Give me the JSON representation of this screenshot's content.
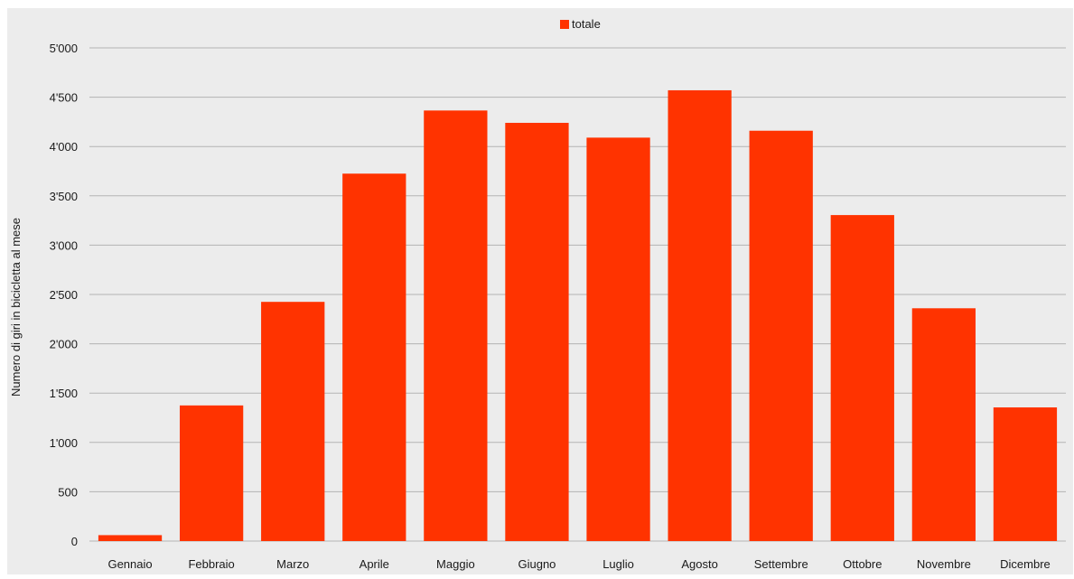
{
  "chart_data": {
    "type": "bar",
    "title": "",
    "xlabel": "",
    "ylabel": "Numero di giri in bicicletta al mese",
    "categories": [
      "Gennaio",
      "Febbraio",
      "Marzo",
      "Aprile",
      "Maggio",
      "Giugno",
      "Luglio",
      "Agosto",
      "Settembre",
      "Ottobre",
      "Novembre",
      "Dicembre"
    ],
    "series": [
      {
        "name": "totale",
        "color": "#ff3300",
        "values": [
          60,
          1375,
          2425,
          3725,
          4365,
          4240,
          4090,
          4570,
          4160,
          3305,
          2360,
          1355
        ]
      }
    ],
    "ylim": [
      0,
      5000
    ],
    "yticks": [
      0,
      500,
      1000,
      1500,
      2000,
      2500,
      3000,
      3500,
      4000,
      4500,
      5000
    ],
    "ytick_labels": [
      "0",
      "500",
      "1'000",
      "1'500",
      "2'000",
      "2'500",
      "3'000",
      "3'500",
      "4'000",
      "4'500",
      "5'000"
    ],
    "grid": true,
    "legend_position": "top-center",
    "background_color": "#ececec",
    "gridline_color": "#b3b3b3"
  }
}
